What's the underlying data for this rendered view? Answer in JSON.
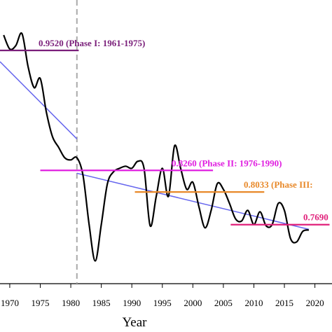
{
  "chart_data": {
    "type": "line",
    "xlabel": "Year",
    "xlim": [
      1968.4,
      2022.8
    ],
    "ylim": [
      0.707,
      1.005
    ],
    "xticks": [
      1970,
      1975,
      1980,
      1985,
      1990,
      1995,
      2000,
      2005,
      2010,
      2015,
      2020
    ],
    "x": [
      1969,
      1970,
      1971,
      1972,
      1973,
      1974,
      1975,
      1976,
      1977,
      1978,
      1979,
      1980,
      1981,
      1982,
      1983,
      1984,
      1985,
      1986,
      1987,
      1988,
      1989,
      1990,
      1991,
      1992,
      1993,
      1994,
      1995,
      1996,
      1997,
      1998,
      1999,
      2000,
      2001,
      2002,
      2003,
      2004,
      2005,
      2006,
      2007,
      2008,
      2009,
      2010,
      2011,
      2012,
      2013,
      2014,
      2015,
      2016,
      2017,
      2018,
      2019
    ],
    "series": [
      {
        "color": "#000000",
        "values": [
          0.9682,
          0.9535,
          0.9572,
          0.9697,
          0.935,
          0.9129,
          0.9225,
          0.8871,
          0.8614,
          0.8503,
          0.8393,
          0.837,
          0.8393,
          0.8208,
          0.7692,
          0.7309,
          0.7692,
          0.812,
          0.8245,
          0.8282,
          0.8304,
          0.8282,
          0.8356,
          0.8282,
          0.7678,
          0.7987,
          0.8282,
          0.7987,
          0.8518,
          0.8282,
          0.8061,
          0.8135,
          0.7877,
          0.7656,
          0.784,
          0.812,
          0.8061,
          0.7914,
          0.7751,
          0.7729,
          0.784,
          0.7692,
          0.7825,
          0.7678,
          0.7692,
          0.7914,
          0.784,
          0.7545,
          0.7508,
          0.7619,
          0.7634
        ]
      }
    ],
    "trend_lines": [
      {
        "color": "#6666ee",
        "x": [
          1968.4,
          1981
        ],
        "values": [
          0.9402,
          0.8591
        ]
      },
      {
        "color": "#6666ee",
        "x": [
          1981,
          2019
        ],
        "values": [
          0.823,
          0.7641
        ]
      }
    ],
    "reference_lines": [
      {
        "color": "#7a1f7a",
        "x": [
          1968.4,
          1981.3
        ],
        "value": 0.952,
        "label": "0.9520 (Phase I: 1961-1975)"
      },
      {
        "color": "#e020e0",
        "x": [
          1975,
          2003.3
        ],
        "value": 0.826,
        "label": "0.8260 (Phase II: 1976-1990)"
      },
      {
        "color": "#e8892a",
        "x": [
          1990.5,
          2011.7
        ],
        "value": 0.8033,
        "label": "0.8033 (Phase III:"
      },
      {
        "color": "#e0207a",
        "x": [
          2006.2,
          2022.4
        ],
        "value": 0.769,
        "label": "0.7690"
      }
    ],
    "divider_x": 1981
  }
}
